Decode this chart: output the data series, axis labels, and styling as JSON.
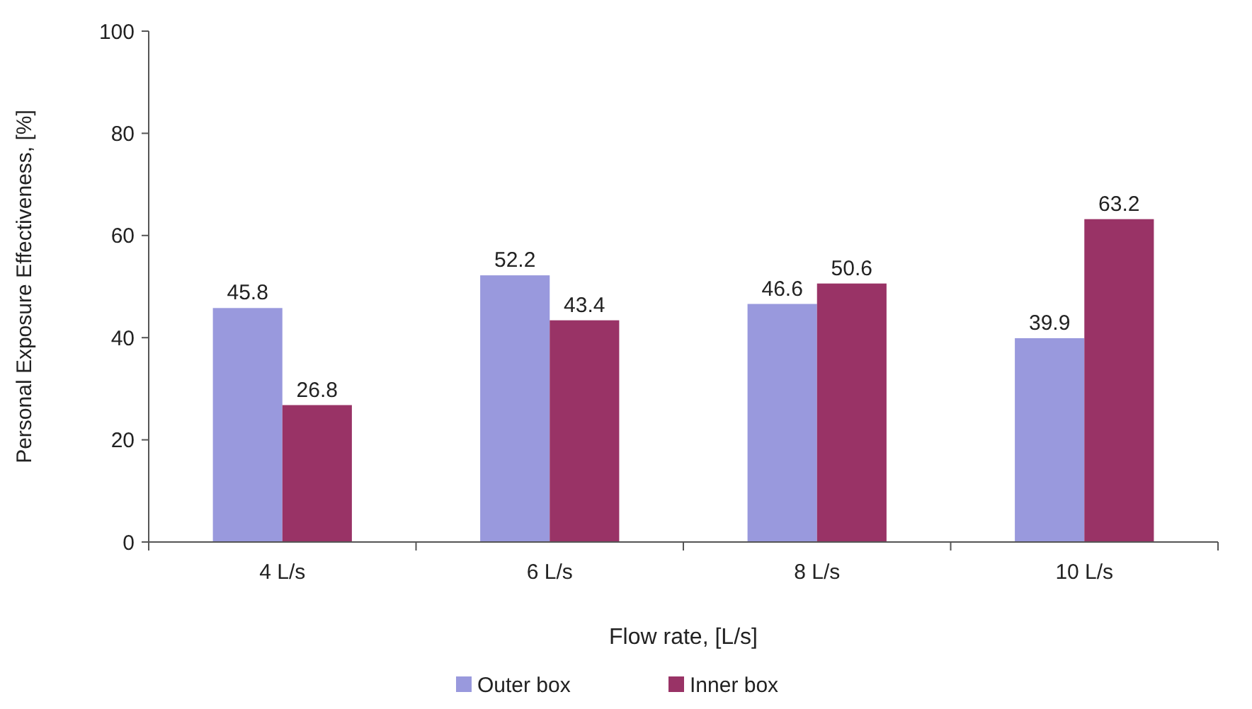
{
  "chart_data": {
    "type": "bar",
    "xlabel": "Flow rate, [L/s]",
    "ylabel": "Personal Exposure Effectiveness, [%]",
    "categories": [
      "4 L/s",
      "6 L/s",
      "8 L/s",
      "10 L/s"
    ],
    "series": [
      {
        "name": "Outer box",
        "color": "#9999dd",
        "values": [
          45.8,
          52.2,
          46.6,
          39.9
        ]
      },
      {
        "name": "Inner box",
        "color": "#993366",
        "values": [
          26.8,
          43.4,
          50.6,
          63.2
        ]
      }
    ],
    "ylim": [
      0,
      100
    ],
    "yticks": [
      0,
      20,
      40,
      60,
      80,
      100
    ],
    "grid": false,
    "legend": "bottom",
    "data_labels": true
  }
}
